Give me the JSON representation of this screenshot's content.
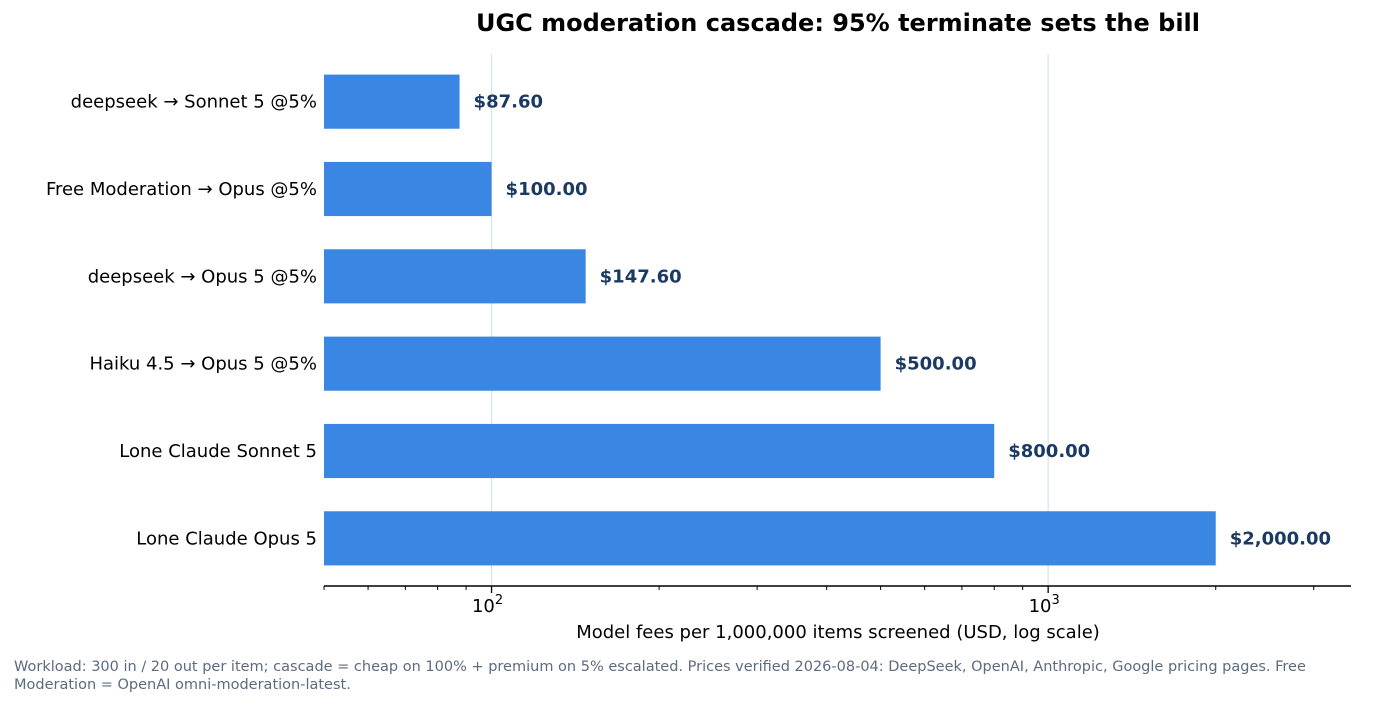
{
  "chart_data": {
    "type": "bar",
    "orientation": "horizontal",
    "title": "UGC moderation cascade: 95% terminate sets the bill",
    "xlabel": "Model fees per 1,000,000 items screened (USD, log scale)",
    "ylabel": "",
    "xscale": "log",
    "xlim": [
      50,
      3500
    ],
    "xticks": [
      {
        "value": 100,
        "base": "10",
        "exp": "2"
      },
      {
        "value": 1000,
        "base": "10",
        "exp": "3"
      }
    ],
    "grid": "vertical major gridlines",
    "categories": [
      "deepseek → Sonnet 5 @5%",
      "Free Moderation → Opus @5%",
      "deepseek → Opus 5 @5%",
      "Haiku 4.5 → Opus 5 @5%",
      "Lone Claude Sonnet 5",
      "Lone Claude Opus 5"
    ],
    "values": [
      87.6,
      100.0,
      147.6,
      500.0,
      800.0,
      2000.0
    ],
    "data_labels": [
      "$87.60",
      "$100.00",
      "$147.60",
      "$500.00",
      "$800.00",
      "$2,000.00"
    ],
    "colors": {
      "bar": "#3a87e3",
      "data_label": "#1b3a63",
      "grid": "#d3e3ee",
      "axis": "#000000"
    }
  },
  "footnote": "Workload: 300 in / 20 out per item; cascade = cheap on 100% + premium on 5% escalated. Prices verified 2026-08-04: DeepSeek, OpenAI, Anthropic, Google pricing pages. Free Moderation = OpenAI omni-moderation-latest."
}
